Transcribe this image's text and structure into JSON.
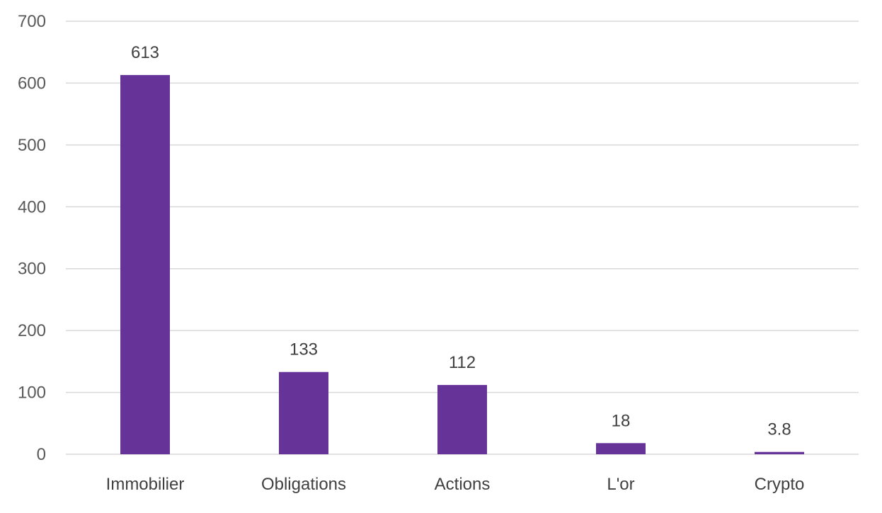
{
  "chart_data": {
    "type": "bar",
    "title": "",
    "xlabel": "",
    "ylabel": "",
    "categories": [
      "Immobilier",
      "Obligations",
      "Actions",
      "L'or",
      "Crypto"
    ],
    "values": [
      613,
      133,
      112,
      18,
      3.8
    ],
    "data_labels": [
      "613",
      "133",
      "112",
      "18",
      "3.8"
    ],
    "ylim": [
      0,
      700
    ],
    "yticks": [
      0,
      100,
      200,
      300,
      400,
      500,
      600,
      700
    ],
    "grid": true,
    "legend": "none",
    "bar_color": "#663399"
  }
}
